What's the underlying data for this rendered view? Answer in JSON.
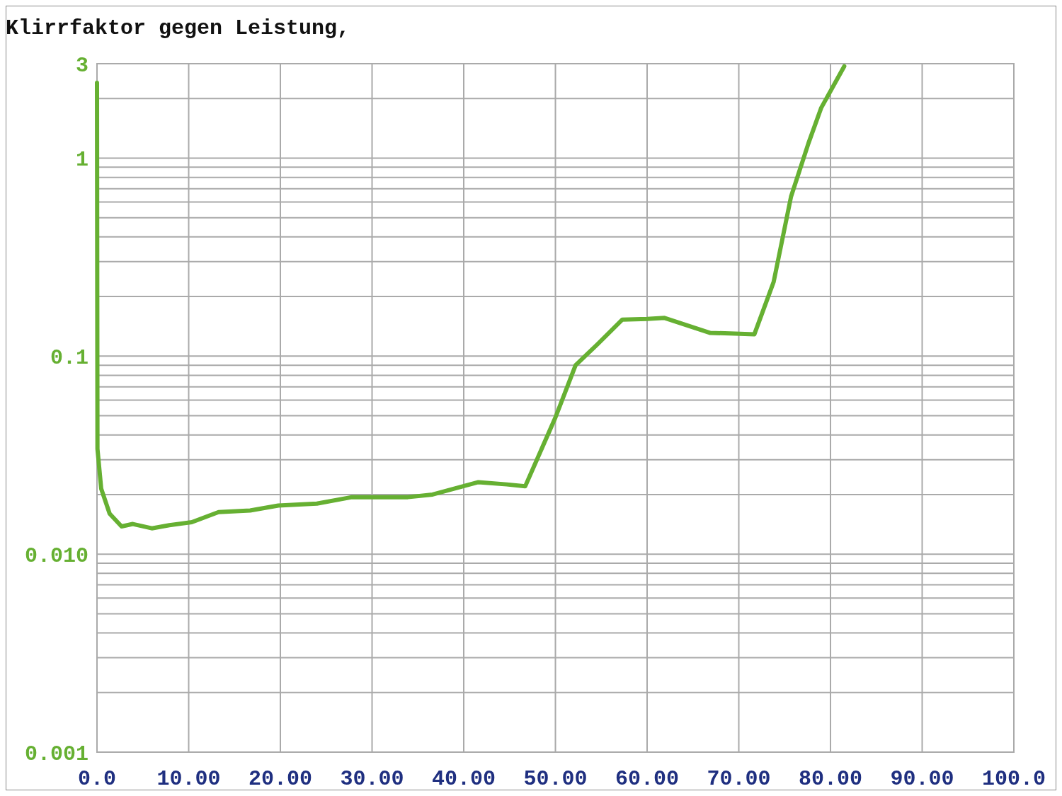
{
  "chart_data": {
    "type": "line",
    "title": "Klirrfaktor gegen Leistung,",
    "log": "y",
    "grid": true,
    "xlim": [
      0,
      100
    ],
    "ylim": [
      0.001,
      3
    ],
    "xticks": [
      {
        "value": 0,
        "label": "0.0"
      },
      {
        "value": 10,
        "label": "10.00"
      },
      {
        "value": 20,
        "label": "20.00"
      },
      {
        "value": 30,
        "label": "30.00"
      },
      {
        "value": 40,
        "label": "40.00"
      },
      {
        "value": 50,
        "label": "50.00"
      },
      {
        "value": 60,
        "label": "60.00"
      },
      {
        "value": 70,
        "label": "70.00"
      },
      {
        "value": 80,
        "label": "80.00"
      },
      {
        "value": 90,
        "label": "90.00"
      },
      {
        "value": 100,
        "label": "100.0"
      }
    ],
    "yticks": [
      {
        "value": 0.001,
        "label": "0.001"
      },
      {
        "value": 0.01,
        "label": "0.010"
      },
      0.1,
      1,
      3
    ],
    "x": [
      0,
      0.05,
      0.46,
      1.38,
      2.68,
      3.91,
      5.98,
      7.89,
      10.34,
      13.26,
      16.7,
      19.77,
      23.98,
      27.8,
      33.9,
      36.6,
      41.6,
      44.7,
      46.7,
      50.0,
      52.2,
      54.6,
      57.3,
      60.0,
      61.9,
      66.9,
      69.6,
      71.7,
      73.8,
      75.7,
      77.6,
      79.0,
      81.5
    ],
    "series": [
      {
        "color": "#66b032",
        "values": [
          2.4,
          0.034,
          0.0214,
          0.016,
          0.0138,
          0.0142,
          0.0135,
          0.014,
          0.0145,
          0.0163,
          0.0166,
          0.0176,
          0.018,
          0.0194,
          0.0194,
          0.02,
          0.0231,
          0.0225,
          0.022,
          0.049,
          0.09,
          0.115,
          0.153,
          0.154,
          0.156,
          0.131,
          0.13,
          0.129,
          0.237,
          0.64,
          1.19,
          1.8,
          2.91
        ]
      }
    ]
  }
}
